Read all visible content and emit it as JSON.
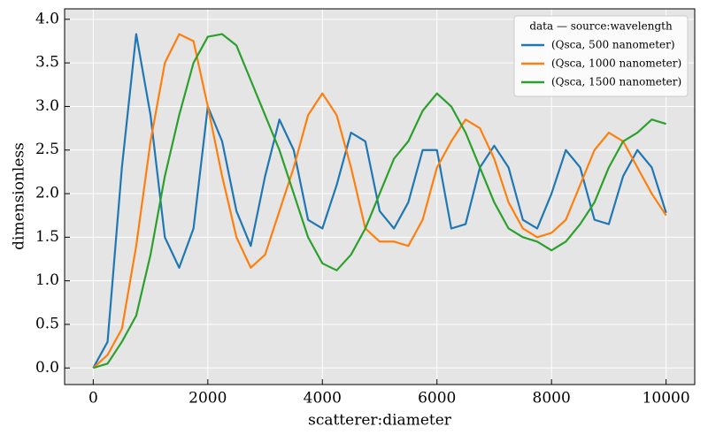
{
  "chart_data": {
    "type": "line",
    "x_label": "scatterer:diameter",
    "y_label": "dimensionless",
    "legend_title": "data — source:wavelength",
    "legend_position": "upper right",
    "grid": true,
    "xlim": [
      -500,
      10500
    ],
    "ylim": [
      -0.19,
      4.12
    ],
    "xticks": [
      0,
      2000,
      4000,
      6000,
      8000,
      10000
    ],
    "yticks": [
      {
        "value": 0,
        "label": "0.0"
      },
      {
        "value": 0.5,
        "label": "0.5"
      },
      {
        "value": 1,
        "label": "1.0"
      },
      {
        "value": 1.5,
        "label": "1.5"
      },
      {
        "value": 2,
        "label": "2.0"
      },
      {
        "value": 2.5,
        "label": "2.5"
      },
      {
        "value": 3,
        "label": "3.0"
      },
      {
        "value": 3.5,
        "label": "3.5"
      },
      {
        "value": 4,
        "label": "4.0"
      }
    ],
    "x": [
      0,
      250,
      500,
      750,
      1000,
      1250,
      1500,
      1750,
      2000,
      2250,
      2500,
      2750,
      3000,
      3250,
      3500,
      3750,
      4000,
      4250,
      4500,
      4750,
      5000,
      5250,
      5500,
      5750,
      6000,
      6250,
      6500,
      6750,
      7000,
      7250,
      7500,
      7750,
      8000,
      8250,
      8500,
      8750,
      9000,
      9250,
      9500,
      9750,
      10000
    ],
    "series": [
      {
        "name": "(Qsca, 500 nanometer)",
        "color": "#1f77b4",
        "values": [
          0,
          0.3,
          2.3,
          3.83,
          2.9,
          1.5,
          1.15,
          1.6,
          3.0,
          2.6,
          1.8,
          1.4,
          2.2,
          2.85,
          2.5,
          1.7,
          1.6,
          2.1,
          2.7,
          2.6,
          1.8,
          1.6,
          1.9,
          2.5,
          2.5,
          1.6,
          1.65,
          2.3,
          2.55,
          2.3,
          1.7,
          1.6,
          2.0,
          2.5,
          2.3,
          1.7,
          1.65,
          2.2,
          2.5,
          2.3,
          1.78
        ]
      },
      {
        "name": "(Qsca, 1000 nanometer)",
        "color": "#ff7f0e",
        "values": [
          0,
          0.15,
          0.45,
          1.4,
          2.6,
          3.5,
          3.83,
          3.75,
          3.0,
          2.2,
          1.5,
          1.15,
          1.3,
          1.8,
          2.3,
          2.9,
          3.15,
          2.9,
          2.3,
          1.6,
          1.45,
          1.45,
          1.4,
          1.7,
          2.3,
          2.6,
          2.85,
          2.75,
          2.4,
          1.9,
          1.6,
          1.5,
          1.55,
          1.7,
          2.1,
          2.5,
          2.7,
          2.6,
          2.3,
          2.0,
          1.75
        ]
      },
      {
        "name": "(Qsca, 1500 nanometer)",
        "color": "#2ca02c",
        "values": [
          0,
          0.05,
          0.3,
          0.6,
          1.3,
          2.2,
          2.9,
          3.5,
          3.8,
          3.83,
          3.7,
          3.3,
          2.9,
          2.5,
          2.0,
          1.5,
          1.2,
          1.12,
          1.3,
          1.6,
          2.0,
          2.4,
          2.6,
          2.95,
          3.15,
          3.0,
          2.7,
          2.3,
          1.9,
          1.6,
          1.5,
          1.45,
          1.35,
          1.45,
          1.65,
          1.9,
          2.3,
          2.6,
          2.7,
          2.85,
          2.8
        ]
      }
    ]
  }
}
